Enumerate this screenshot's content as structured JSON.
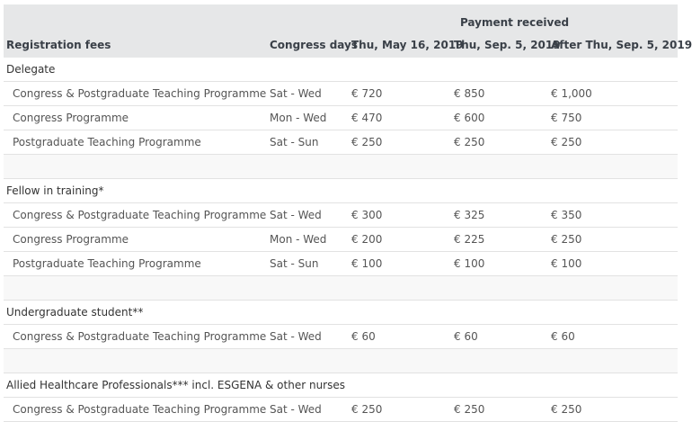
{
  "header": {
    "payment_received": "Payment received",
    "columns": [
      "Registration fees",
      "Congress days",
      "Thu, May 16, 2019",
      "Thu, Sep. 5, 2019",
      "After Thu, Sep. 5, 2019"
    ]
  },
  "groups": [
    {
      "name": "Delegate",
      "rows": [
        {
          "label": "Congress & Postgraduate Teaching Programme",
          "days": "Sat - Wed",
          "p1": "€ 720",
          "p2": "€ 850",
          "p3": "€ 1,000"
        },
        {
          "label": "Congress Programme",
          "days": "Mon - Wed",
          "p1": "€ 470",
          "p2": "€ 600",
          "p3": "€ 750"
        },
        {
          "label": "Postgraduate Teaching Programme",
          "days": "Sat - Sun",
          "p1": "€ 250",
          "p2": "€ 250",
          "p3": "€ 250"
        }
      ]
    },
    {
      "name": "Fellow in training*",
      "rows": [
        {
          "label": "Congress & Postgraduate Teaching Programme",
          "days": "Sat - Wed",
          "p1": "€ 300",
          "p2": "€ 325",
          "p3": "€ 350"
        },
        {
          "label": "Congress Programme",
          "days": "Mon - Wed",
          "p1": "€ 200",
          "p2": "€ 225",
          "p3": "€ 250"
        },
        {
          "label": "Postgraduate Teaching Programme",
          "days": "Sat - Sun",
          "p1": "€ 100",
          "p2": "€ 100",
          "p3": "€ 100"
        }
      ]
    },
    {
      "name": "Undergraduate student**",
      "rows": [
        {
          "label": "Congress & Postgraduate Teaching Programme",
          "days": "Sat - Wed",
          "p1": "€ 60",
          "p2": "€ 60",
          "p3": "€ 60"
        }
      ]
    },
    {
      "name": "Allied Healthcare Professionals*** incl. ESGENA & other nurses",
      "rows": [
        {
          "label": "Congress & Postgraduate Teaching Programme",
          "days": "Sat - Wed",
          "p1": "€ 250",
          "p2": "€ 250",
          "p3": "€ 250"
        }
      ]
    }
  ]
}
